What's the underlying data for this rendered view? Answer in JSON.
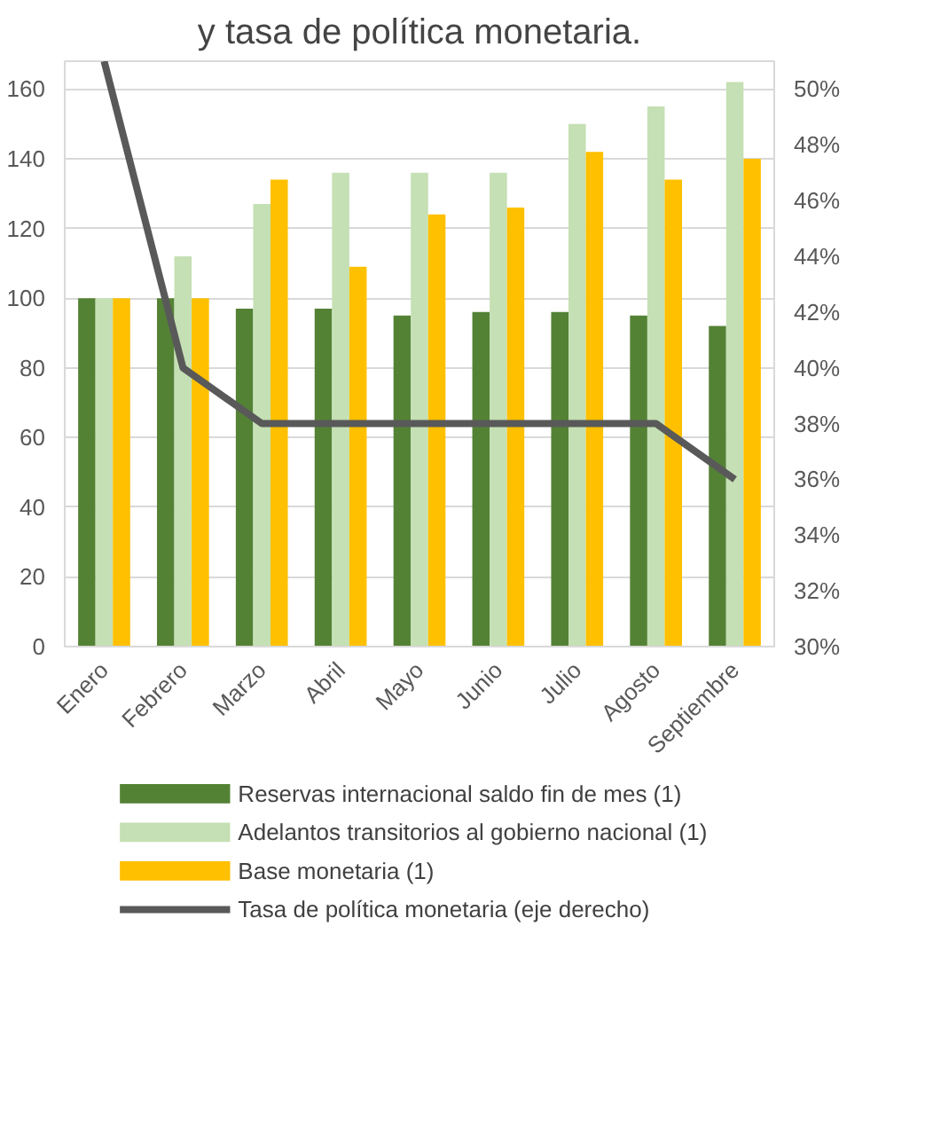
{
  "chart_data": {
    "type": "bar",
    "title": "y tasa de política monetaria.",
    "categories": [
      "Enero",
      "Febrero",
      "Marzo",
      "Abril",
      "Mayo",
      "Junio",
      "Julio",
      "Agosto",
      "Septiembre"
    ],
    "series": [
      {
        "name": "Reservas internacional saldo fin de mes (1)",
        "color": "#548235",
        "values": [
          100,
          100,
          97,
          97,
          95,
          96,
          96,
          95,
          92
        ]
      },
      {
        "name": "Adelantos transitorios al gobierno nacional (1)",
        "color": "#c5e0b4",
        "values": [
          100,
          112,
          127,
          136,
          136,
          136,
          150,
          155,
          162
        ]
      },
      {
        "name": "Base monetaria (1)",
        "color": "#ffc000",
        "values": [
          100,
          100,
          134,
          109,
          124,
          126,
          142,
          134,
          140
        ]
      },
      {
        "name": "Tasa de política monetaria (eje derecho)",
        "type": "line",
        "axis": "y2",
        "color": "#595959",
        "values": [
          51,
          40,
          38,
          38,
          38,
          38,
          38,
          38,
          36
        ]
      }
    ],
    "ylim": [
      0,
      168
    ],
    "yticks": [
      0,
      20,
      40,
      60,
      80,
      100,
      120,
      140,
      160
    ],
    "y2lim": [
      30,
      51
    ],
    "y2ticks": [
      {
        "value": 30,
        "label": "30%"
      },
      {
        "value": 32,
        "label": "32%"
      },
      {
        "value": 34,
        "label": "34%"
      },
      {
        "value": 36,
        "label": "36%"
      },
      {
        "value": 38,
        "label": "38%"
      },
      {
        "value": 40,
        "label": "40%"
      },
      {
        "value": 42,
        "label": "42%"
      },
      {
        "value": 44,
        "label": "44%"
      },
      {
        "value": 46,
        "label": "46%"
      },
      {
        "value": 48,
        "label": "48%"
      },
      {
        "value": 50,
        "label": "50%"
      }
    ],
    "grid": "y",
    "legend": "bottom",
    "marker": "none",
    "line_style": "solid"
  }
}
